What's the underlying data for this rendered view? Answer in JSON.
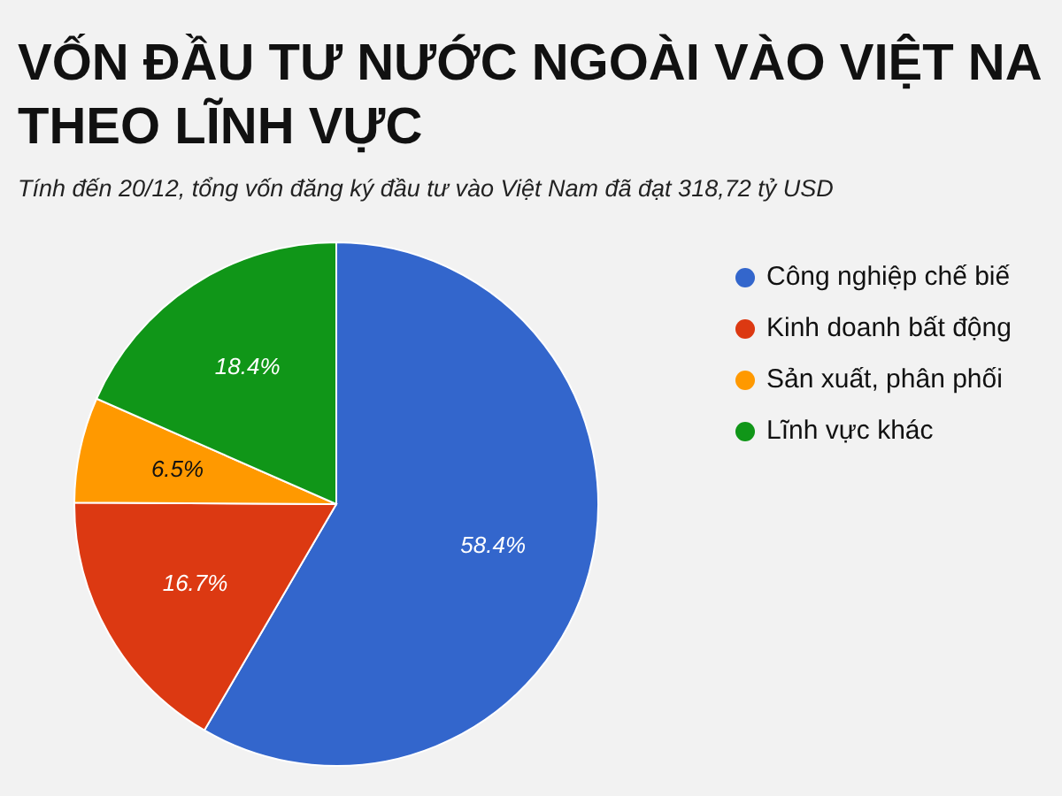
{
  "chart_data": {
    "type": "pie",
    "title": "VỐN ĐẦU TƯ NƯỚC NGOÀI VÀO VIỆT NA THEO LĨNH VỰC",
    "subtitle": "Tính đến 20/12, tổng vốn đăng ký đầu tư vào Việt Nam đã đạt 318,72 tỷ USD",
    "categories": [
      "Công nghiệp chế biế",
      "Kinh doanh bất động",
      "Sản xuất, phân phối",
      "Lĩnh vực khác"
    ],
    "values": [
      58.4,
      16.7,
      6.5,
      18.4
    ],
    "value_labels": [
      "58.4%",
      "16.7%",
      "6.5%",
      "18.4%"
    ],
    "colors": [
      "#3366cc",
      "#dc3912",
      "#ff9900",
      "#109618"
    ],
    "legend": "right"
  }
}
